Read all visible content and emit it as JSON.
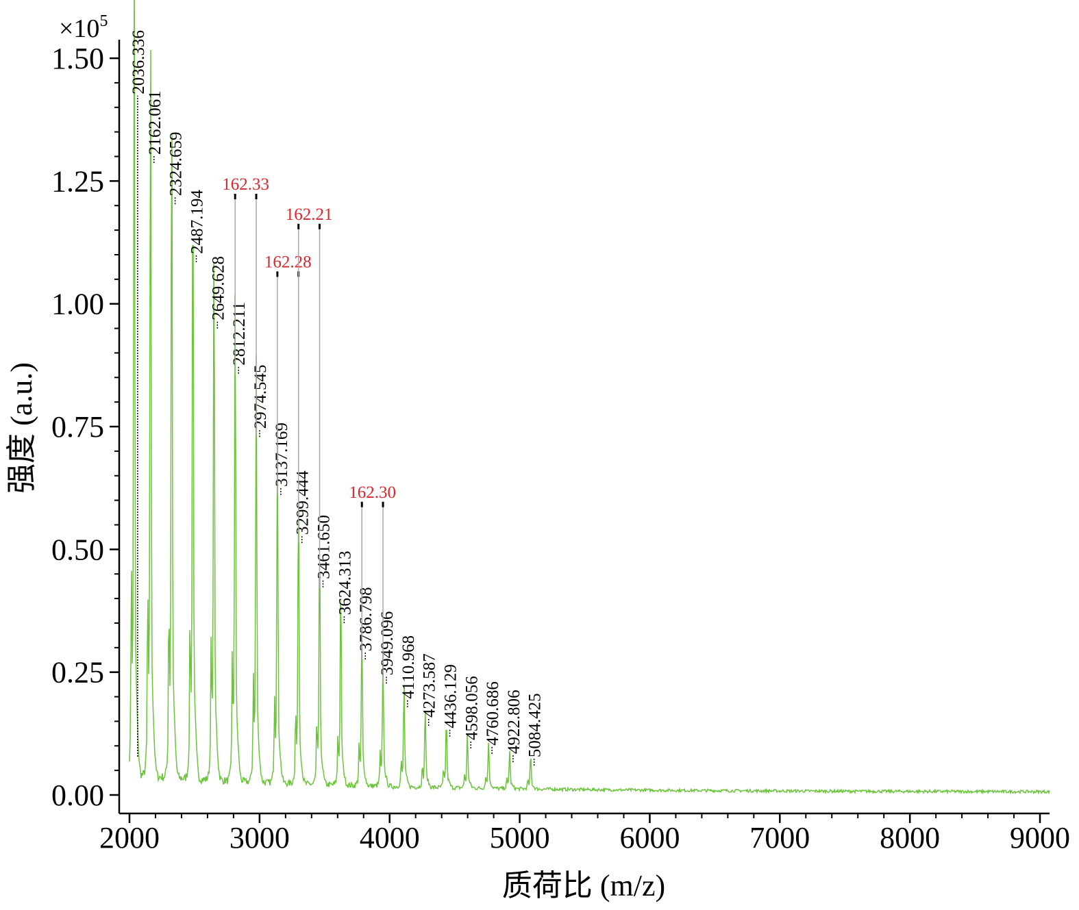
{
  "chart_data": {
    "type": "line",
    "title": "",
    "xlabel": "质荷比 (m/z)",
    "ylabel": "强度 (a.u.)",
    "y_multiplier": "×10",
    "y_multiplier_exp": "5",
    "xlim": [
      2000,
      9100
    ],
    "ylim": [
      0,
      1.55
    ],
    "x_ticks": [
      "2000",
      "3000",
      "4000",
      "5000",
      "6000",
      "7000",
      "8000",
      "9000"
    ],
    "y_ticks": [
      "0.00",
      "0.25",
      "0.50",
      "0.75",
      "1.00",
      "1.25",
      "1.50"
    ],
    "grid": false,
    "line_color": "#6cc33c",
    "peaks": [
      {
        "mz": 2036.336,
        "intensity": 1.407,
        "label": "2036.336"
      },
      {
        "mz": 2162.061,
        "intensity": 1.284,
        "label": "2162.061"
      },
      {
        "mz": 2324.659,
        "intensity": 1.2,
        "label": "2324.659"
      },
      {
        "mz": 2487.194,
        "intensity": 1.082,
        "label": "2487.194"
      },
      {
        "mz": 2649.628,
        "intensity": 0.947,
        "label": "2649.628"
      },
      {
        "mz": 2812.211,
        "intensity": 0.855,
        "label": "2812.211"
      },
      {
        "mz": 2974.545,
        "intensity": 0.726,
        "label": "2974.545"
      },
      {
        "mz": 3137.169,
        "intensity": 0.608,
        "label": "3137.169"
      },
      {
        "mz": 3299.444,
        "intensity": 0.51,
        "label": "3299.444"
      },
      {
        "mz": 3461.65,
        "intensity": 0.42,
        "label": "3461.650"
      },
      {
        "mz": 3624.313,
        "intensity": 0.347,
        "label": "3624.313"
      },
      {
        "mz": 3786.798,
        "intensity": 0.273,
        "label": "3786.798"
      },
      {
        "mz": 3949.096,
        "intensity": 0.224,
        "label": "3949.096"
      },
      {
        "mz": 4110.968,
        "intensity": 0.176,
        "label": "4110.968"
      },
      {
        "mz": 4273.587,
        "intensity": 0.138,
        "label": "4273.587"
      },
      {
        "mz": 4436.129,
        "intensity": 0.116,
        "label": "4436.129"
      },
      {
        "mz": 4598.056,
        "intensity": 0.092,
        "label": "4598.056"
      },
      {
        "mz": 4760.686,
        "intensity": 0.081,
        "label": "4760.686"
      },
      {
        "mz": 4922.806,
        "intensity": 0.064,
        "label": "4922.806"
      },
      {
        "mz": 5084.425,
        "intensity": 0.057,
        "label": "5084.425"
      }
    ],
    "annotations": [
      {
        "from": 2812.211,
        "to": 2974.545,
        "level": 1.224,
        "label": "162.33",
        "color": "#d9262b"
      },
      {
        "from": 3137.169,
        "to": 3299.444,
        "level": 1.066,
        "label": "162.28",
        "color": "#d9262b"
      },
      {
        "from": 3299.444,
        "to": 3461.65,
        "level": 1.163,
        "label": "162.21",
        "color": "#d9262b"
      },
      {
        "from": 3786.798,
        "to": 3949.096,
        "level": 0.597,
        "label": "162.30",
        "color": "#d9262b"
      }
    ]
  }
}
